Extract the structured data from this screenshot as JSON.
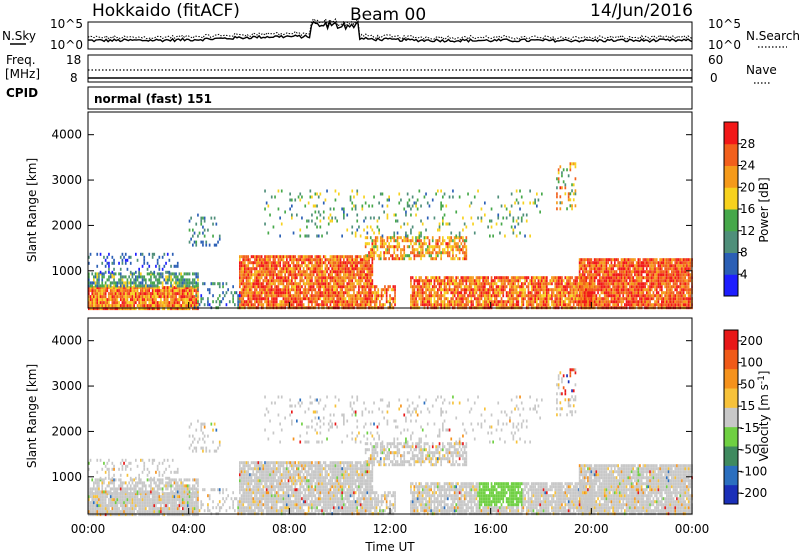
{
  "header": {
    "title": "Hokkaido (fitACF)",
    "beam": "Beam 00",
    "date": "14/Jun/2016"
  },
  "top_panel": {
    "left_label": "N.Sky",
    "right_label": "N.Search",
    "left_ticks": [
      "10^5",
      "10^0"
    ],
    "right_ticks": [
      "10^5",
      "10^0"
    ]
  },
  "freq_panel": {
    "left_label_line1": "Freq.",
    "left_label_line2": "[MHz]",
    "left_ticks": [
      "18",
      "8"
    ],
    "right_ticks": [
      "60",
      "0"
    ],
    "right_label": "Nave"
  },
  "cpid": {
    "label": "CPID",
    "value": "normal (fast) 151"
  },
  "chart_data": [
    {
      "type": "heatmap",
      "name": "power",
      "ylabel": "Slant Range [km]",
      "yticks": [
        1000,
        2000,
        3000,
        4000
      ],
      "ylim": [
        180,
        4500
      ],
      "xlim": [
        0,
        24
      ],
      "colorbar_label": "Power [dB]",
      "colorbar_ticks": [
        4,
        8,
        12,
        16,
        20,
        24,
        28
      ],
      "colorbar_range": [
        0,
        32
      ],
      "colors": [
        "#1e1eff",
        "#2b5fb5",
        "#4f8f7a",
        "#46a84a",
        "#f7d21e",
        "#f59a1a",
        "#f2601c",
        "#f21818"
      ]
    },
    {
      "type": "heatmap",
      "name": "velocity",
      "ylabel": "Slant Range [km]",
      "yticks": [
        1000,
        2000,
        3000,
        4000
      ],
      "ylim": [
        180,
        4500
      ],
      "xlim": [
        0,
        24
      ],
      "xticks": [
        "00:00",
        "04:00",
        "08:00",
        "12:00",
        "16:00",
        "20:00",
        "00:00"
      ],
      "xlabel": "Time UT",
      "colorbar_label": "Velocity [m s",
      "colorbar_label_sup": "-1",
      "colorbar_label_end": "]",
      "colorbar_ticks": [
        "200",
        "100",
        "50",
        "15",
        "-15",
        "-50",
        "-100",
        "-200"
      ],
      "colors": [
        "#1a2fb8",
        "#2b6fbf",
        "#3f8a5f",
        "#6fd042",
        "#c8c8c8",
        "#f7c23a",
        "#f5921c",
        "#f05a18",
        "#e81818"
      ]
    }
  ]
}
